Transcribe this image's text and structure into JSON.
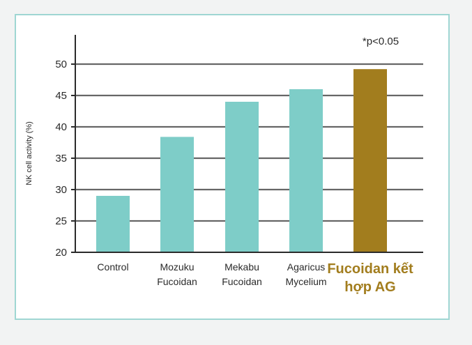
{
  "chart_data": {
    "type": "bar",
    "ylabel": "NK cell activity (%)",
    "annotation": "*p<0.05",
    "ylim": [
      20,
      50
    ],
    "yticks": [
      20,
      25,
      30,
      35,
      40,
      45,
      50
    ],
    "grid": true,
    "categories": [
      [
        "Control"
      ],
      [
        "Mozuku",
        "Fucoidan"
      ],
      [
        "Mekabu",
        "Fucoidan"
      ],
      [
        "Agaricus",
        "Mycelium"
      ],
      [
        "Fucoidan kết",
        "hợp AG"
      ]
    ],
    "values": [
      29,
      38.4,
      44,
      46,
      49.2
    ],
    "highlight_index": 4,
    "colors": {
      "bar": "#7ecdc8",
      "highlight_bar": "#a27d1e",
      "highlight_text": "#a27d1e",
      "grid": "#666666",
      "axis": "#2a2a2a",
      "frame": "#9fd6d3"
    }
  }
}
